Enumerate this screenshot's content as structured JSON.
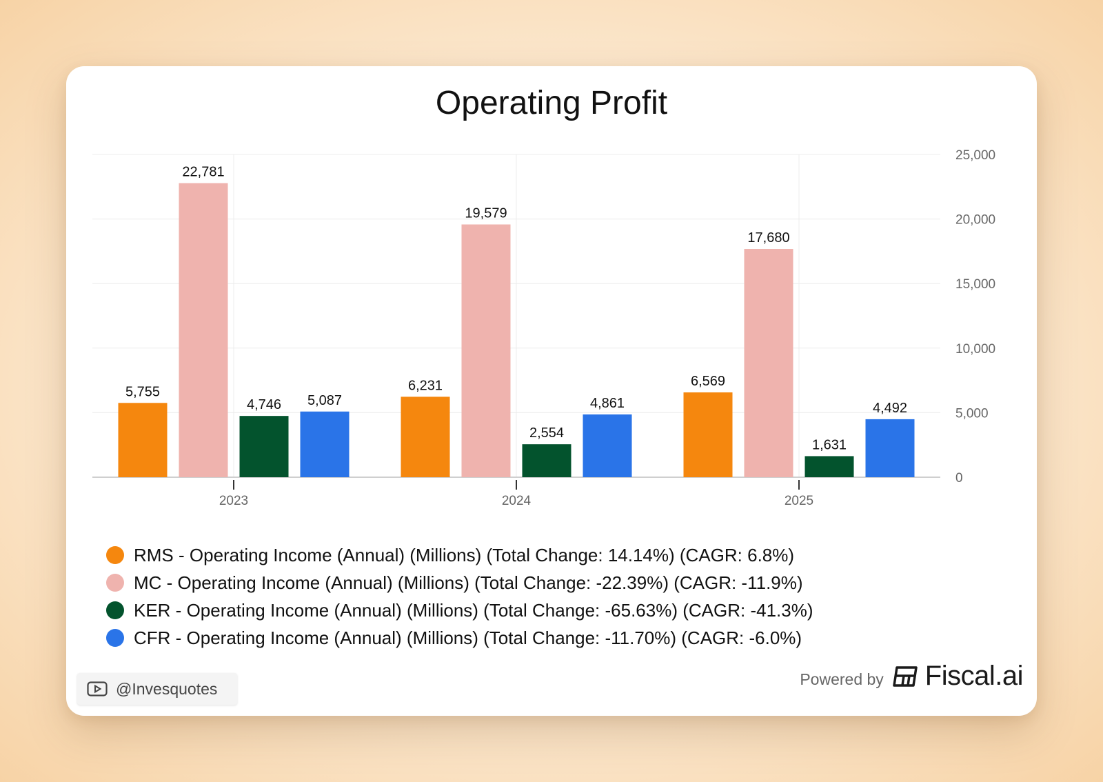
{
  "chart_data": {
    "type": "bar",
    "title": "Operating Profit",
    "categories": [
      "2023",
      "2024",
      "2025"
    ],
    "series": [
      {
        "name": "RMS - Operating Income (Annual) (Millions) (Total Change: 14.14%) (CAGR: 6.8%)",
        "color": "#f5870e",
        "values": [
          5755,
          6231,
          6569
        ],
        "labels": [
          "5,755",
          "6,231",
          "6,569"
        ]
      },
      {
        "name": "MC - Operating Income (Annual) (Millions) (Total Change: -22.39%) (CAGR: -11.9%)",
        "color": "#efb3ae",
        "values": [
          22781,
          19579,
          17680
        ],
        "labels": [
          "22,781",
          "19,579",
          "17,680"
        ]
      },
      {
        "name": "KER - Operating Income (Annual) (Millions) (Total Change: -65.63%) (CAGR: -41.3%)",
        "color": "#03532d",
        "values": [
          4746,
          2554,
          1631
        ],
        "labels": [
          "4,746",
          "2,554",
          "1,631"
        ]
      },
      {
        "name": "CFR - Operating Income (Annual) (Millions) (Total Change: -11.70%) (CAGR: -6.0%)",
        "color": "#2a74e8",
        "values": [
          5087,
          4861,
          4492
        ],
        "labels": [
          "5,087",
          "4,861",
          "4,492"
        ]
      }
    ],
    "ylim": [
      0,
      25000
    ],
    "yticks": [
      0,
      5000,
      10000,
      15000,
      20000,
      25000
    ],
    "ytick_labels": [
      "0",
      "5,000",
      "10,000",
      "15,000",
      "20,000",
      "25,000"
    ],
    "y_axis_side": "right",
    "grid": true,
    "legend_position": "bottom"
  },
  "footer": {
    "handle_icon": "youtube-icon",
    "handle": "@Invesquotes",
    "powered_by": "Powered by",
    "brand_icon": "fiscal-logo-icon",
    "brand": "Fiscal.ai"
  }
}
